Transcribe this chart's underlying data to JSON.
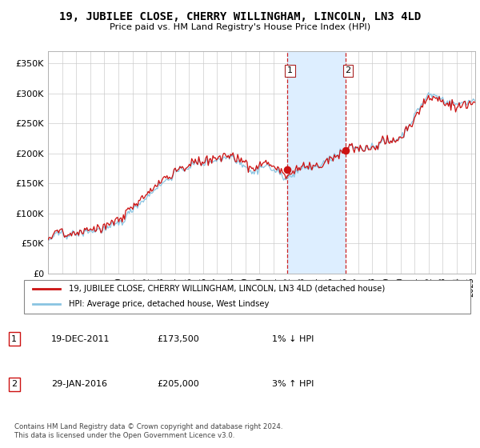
{
  "title": "19, JUBILEE CLOSE, CHERRY WILLINGHAM, LINCOLN, LN3 4LD",
  "subtitle": "Price paid vs. HM Land Registry's House Price Index (HPI)",
  "legend_line1": "19, JUBILEE CLOSE, CHERRY WILLINGHAM, LINCOLN, LN3 4LD (detached house)",
  "legend_line2": "HPI: Average price, detached house, West Lindsey",
  "annotation1_date": "19-DEC-2011",
  "annotation1_price": "£173,500",
  "annotation1_hpi": "1% ↓ HPI",
  "annotation2_date": "29-JAN-2016",
  "annotation2_price": "£205,000",
  "annotation2_hpi": "3% ↑ HPI",
  "footer": "Contains HM Land Registry data © Crown copyright and database right 2024.\nThis data is licensed under the Open Government Licence v3.0.",
  "sale1_year": 2011.97,
  "sale1_value": 173500,
  "sale2_year": 2016.08,
  "sale2_value": 205000,
  "hpi_color": "#89c4e1",
  "price_color": "#cc1111",
  "highlight_color": "#ddeeff",
  "ylim": [
    0,
    370000
  ],
  "yticks": [
    0,
    50000,
    100000,
    150000,
    200000,
    250000,
    300000,
    350000
  ],
  "xmin": 1995,
  "xmax": 2025.3
}
